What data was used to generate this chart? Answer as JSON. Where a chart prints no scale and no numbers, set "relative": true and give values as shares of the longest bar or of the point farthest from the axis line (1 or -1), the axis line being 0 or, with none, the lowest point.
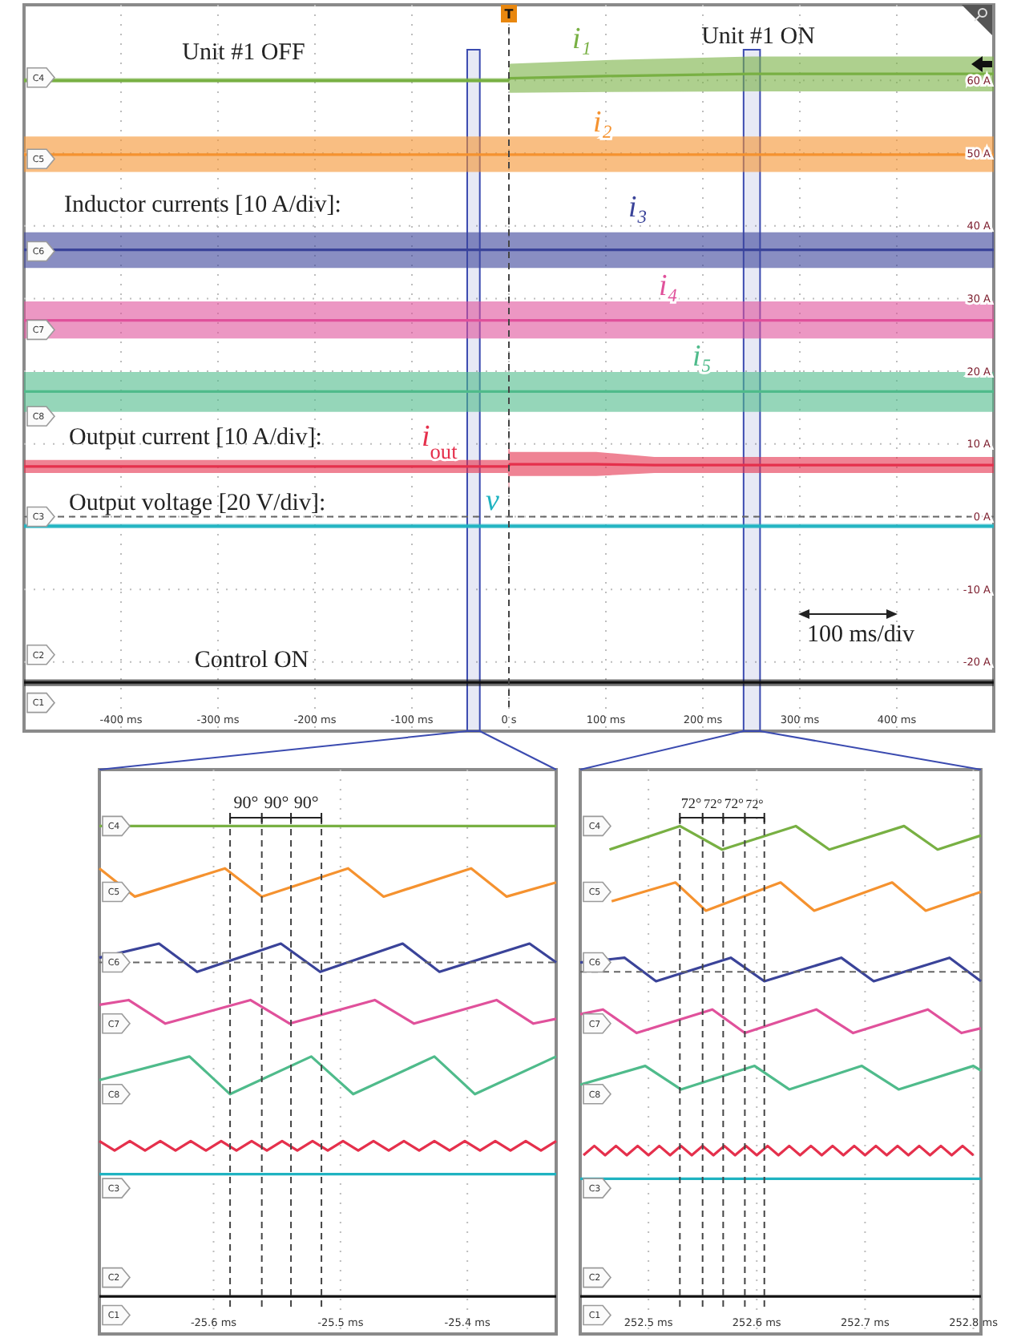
{
  "chart_data": [
    {
      "type": "line",
      "xlim": [
        -500,
        500
      ],
      "ylim": [
        -29.5,
        70.4
      ],
      "xticks": [
        {
          "value": -400,
          "label": "-400 ms"
        },
        {
          "value": -300,
          "label": "-300 ms"
        },
        {
          "value": -200,
          "label": "-200 ms"
        },
        {
          "value": -100,
          "label": "-100 ms"
        },
        {
          "value": 0,
          "label": "0 s"
        },
        {
          "value": 100,
          "label": "100 ms"
        },
        {
          "value": 200,
          "label": "200 ms"
        },
        {
          "value": 300,
          "label": "300 ms"
        },
        {
          "value": 400,
          "label": "400 ms"
        }
      ],
      "yticks": [
        {
          "value": 60,
          "label": "60 A"
        },
        {
          "value": 50,
          "label": "50 A"
        },
        {
          "value": 40,
          "label": "40 A"
        },
        {
          "value": 30,
          "label": "30 A"
        },
        {
          "value": 20,
          "label": "20 A"
        },
        {
          "value": 10,
          "label": "10 A"
        },
        {
          "value": 0,
          "label": "0 A"
        },
        {
          "value": -10,
          "label": "-10 A"
        },
        {
          "value": -20,
          "label": "-20 A"
        }
      ],
      "grid": true,
      "series": [
        {
          "name": "i₁",
          "color": "#78b043",
          "x": [
            -500,
            -1,
            1,
            100,
            250,
            500
          ],
          "values": [
            60,
            60,
            60.3,
            60.6,
            60.9,
            60.9
          ],
          "lower": [
            59.7,
            59.7,
            58.3,
            58.4,
            58.5,
            58.5
          ],
          "upper": [
            60.3,
            60.3,
            62.3,
            62.8,
            63.3,
            63.3
          ]
        },
        {
          "name": "i₂",
          "color": "#f5922f",
          "x": [
            -500,
            500
          ],
          "values": [
            49.8,
            49.8
          ],
          "lower": [
            47.4,
            47.4
          ],
          "upper": [
            52.3,
            52.3
          ]
        },
        {
          "name": "i₃",
          "color": "#3a4399",
          "x": [
            -500,
            500
          ],
          "values": [
            36.7,
            36.7
          ],
          "lower": [
            34.2,
            34.2
          ],
          "upper": [
            39.1,
            39.1
          ]
        },
        {
          "name": "i₄",
          "color": "#e0519b",
          "x": [
            -500,
            500
          ],
          "values": [
            27.0,
            27.0
          ],
          "lower": [
            24.5,
            24.5
          ],
          "upper": [
            29.6,
            29.6
          ]
        },
        {
          "name": "i₅",
          "color": "#4fbb8b",
          "x": [
            -500,
            500
          ],
          "values": [
            17.2,
            17.2
          ],
          "lower": [
            14.4,
            14.4
          ],
          "upper": [
            19.9,
            19.9
          ]
        },
        {
          "name": "i$_{out}$",
          "color": "#e5304c",
          "x": [
            -500,
            -1,
            0,
            1,
            90,
            150,
            500
          ],
          "values": [
            6.9,
            6.9,
            7.0,
            7.2,
            7.2,
            7.1,
            7.1
          ],
          "lower": [
            6.0,
            6.0,
            3.4,
            5.6,
            5.6,
            6.0,
            6.0
          ],
          "upper": [
            7.8,
            7.8,
            10.6,
            8.9,
            8.9,
            8.2,
            8.2
          ]
        },
        {
          "name": "v",
          "color": "#1fb3c1",
          "x": [
            -500,
            500
          ],
          "values": [
            -1.3,
            -1.3
          ],
          "lower": [
            -1.6,
            -1.6
          ],
          "upper": [
            -1.0,
            -1.0
          ]
        },
        {
          "color": "#111111",
          "x": [
            -500,
            500
          ],
          "values": [
            -22.8,
            -22.8
          ],
          "lower": [
            -23.3,
            -23.3
          ],
          "upper": [
            -22.4,
            -22.4
          ]
        }
      ],
      "ref_lines": [
        {
          "axis": "x",
          "value": 0,
          "line_style": "dashed"
        },
        {
          "axis": "y",
          "value": 0,
          "line_style": "dashed"
        }
      ],
      "bands": [
        {
          "axis": "x",
          "from": -43,
          "to": -30,
          "color": "#3b4bb0"
        },
        {
          "axis": "x",
          "from": 242,
          "to": 259,
          "color": "#3b4bb0"
        }
      ],
      "annotations": [
        "Unit #1 OFF",
        "Unit #1 ON",
        "Inductor currents [10 A/div]:",
        "Output current [10 A/div]:",
        "Output voltage [20 V/div]:",
        "Control ON",
        "100 ms/div",
        "T",
        {
          "text": "C4",
          "y": 60.4
        },
        {
          "text": "C5",
          "y": 49.2
        },
        {
          "text": "C6",
          "y": 36.5
        },
        {
          "text": "C7",
          "y": 25.7
        },
        {
          "text": "C8",
          "y": 13.8
        },
        {
          "text": "C3",
          "y": 0
        },
        {
          "text": "C2",
          "y": -19
        },
        {
          "text": "C1",
          "y": -25.6
        }
      ]
    },
    {
      "type": "line",
      "xlim": [
        -25.69,
        -25.33
      ],
      "relative": true,
      "tick_labels": "x",
      "xticks": [
        {
          "value": -25.6,
          "label": "-25.6 ms"
        },
        {
          "value": -25.5,
          "label": "-25.5 ms"
        },
        {
          "value": -25.4,
          "label": "-25.4 ms"
        }
      ],
      "grid": "x",
      "series": [
        {
          "color": "#78b043",
          "x": [
            -25.69,
            -25.33
          ],
          "values": [
            1,
            1
          ]
        },
        {
          "color": "#f5922f",
          "x": [
            -25.69,
            -25.662,
            -25.591,
            -25.562,
            -25.494,
            -25.466,
            -25.397,
            -25.369,
            -25.33
          ],
          "values": [
            0.91,
            0.85,
            0.91,
            0.85,
            0.91,
            0.85,
            0.91,
            0.85,
            0.88
          ]
        },
        {
          "color": "#3a4399",
          "x": [
            -25.69,
            -25.643,
            -25.613,
            -25.547,
            -25.516,
            -25.451,
            -25.422,
            -25.351,
            -25.33
          ],
          "values": [
            0.72,
            0.75,
            0.69,
            0.75,
            0.69,
            0.75,
            0.69,
            0.75,
            0.71
          ]
        },
        {
          "color": "#e0519b",
          "x": [
            -25.69,
            -25.667,
            -25.638,
            -25.571,
            -25.54,
            -25.473,
            -25.442,
            -25.377,
            -25.348,
            -25.33
          ],
          "values": [
            0.62,
            0.63,
            0.58,
            0.63,
            0.58,
            0.63,
            0.58,
            0.63,
            0.58,
            0.59
          ]
        },
        {
          "color": "#4fbb8b",
          "x": [
            -25.69,
            -25.619,
            -25.587,
            -25.523,
            -25.49,
            -25.426,
            -25.394,
            -25.33
          ],
          "values": [
            0.46,
            0.51,
            0.43,
            0.51,
            0.43,
            0.51,
            0.43,
            0.51
          ]
        },
        {
          "color": "#e5304c",
          "x": [
            -25.69,
            -25.678,
            -25.666,
            -25.654,
            -25.642,
            -25.63,
            -25.618,
            -25.606,
            -25.594,
            -25.582,
            -25.57,
            -25.558,
            -25.546,
            -25.534,
            -25.522,
            -25.51,
            -25.498,
            -25.486,
            -25.474,
            -25.462,
            -25.45,
            -25.438,
            -25.426,
            -25.414,
            -25.402,
            -25.39,
            -25.378,
            -25.366,
            -25.354,
            -25.342,
            -25.33
          ],
          "values": [
            0.33,
            0.31,
            0.33,
            0.31,
            0.33,
            0.31,
            0.33,
            0.31,
            0.33,
            0.31,
            0.33,
            0.31,
            0.33,
            0.31,
            0.33,
            0.31,
            0.33,
            0.31,
            0.33,
            0.31,
            0.33,
            0.31,
            0.33,
            0.31,
            0.33,
            0.31,
            0.33,
            0.31,
            0.33,
            0.31,
            0.33
          ]
        },
        {
          "color": "#1fb3c1",
          "x": [
            -25.69,
            -25.33
          ],
          "values": [
            0.26,
            0.26
          ]
        },
        {
          "color": "#111111",
          "x": [
            -25.69,
            -25.33
          ],
          "values": [
            0,
            0
          ]
        }
      ],
      "ref_lines": [
        {
          "axis": "x",
          "value": -25.587,
          "line_style": "dashed"
        },
        {
          "axis": "x",
          "value": -25.562,
          "line_style": "dashed"
        },
        {
          "axis": "x",
          "value": -25.539,
          "line_style": "dashed"
        },
        {
          "axis": "x",
          "value": -25.515,
          "line_style": "dashed"
        },
        {
          "axis": "y",
          "value": 0.71,
          "line_style": "dashed"
        }
      ],
      "annotations": [
        "90°",
        "90°",
        "90°",
        "C4",
        "C5",
        "C6",
        "C7",
        "C8",
        "C3",
        "C2",
        "C1"
      ]
    },
    {
      "type": "line",
      "xlim": [
        252.437,
        252.807
      ],
      "relative": true,
      "tick_labels": "x",
      "xticks": [
        {
          "value": 252.5,
          "label": "252.5 ms"
        },
        {
          "value": 252.6,
          "label": "252.6 ms"
        },
        {
          "value": 252.7,
          "label": "252.7 ms"
        },
        {
          "value": 252.8,
          "label": "252.8 ms"
        }
      ],
      "grid": "x",
      "series": [
        {
          "color": "#78b043",
          "x": [
            252.464,
            252.529,
            252.568,
            252.636,
            252.667,
            252.736,
            252.767,
            252.807
          ],
          "values": [
            0.95,
            1,
            0.95,
            1,
            0.95,
            1,
            0.95,
            0.98
          ]
        },
        {
          "color": "#f5922f",
          "x": [
            252.466,
            252.525,
            252.553,
            252.622,
            252.653,
            252.725,
            252.756,
            252.807
          ],
          "values": [
            0.84,
            0.88,
            0.82,
            0.88,
            0.82,
            0.88,
            0.82,
            0.86
          ]
        },
        {
          "color": "#3a4399",
          "x": [
            252.437,
            252.478,
            252.507,
            252.576,
            252.607,
            252.678,
            252.708,
            252.778,
            252.807
          ],
          "values": [
            0.71,
            0.72,
            0.67,
            0.72,
            0.67,
            0.72,
            0.67,
            0.72,
            0.67
          ]
        },
        {
          "color": "#e0519b",
          "x": [
            252.437,
            252.458,
            252.489,
            252.559,
            252.589,
            252.655,
            252.689,
            252.758,
            252.789,
            252.807
          ],
          "values": [
            0.6,
            0.61,
            0.56,
            0.61,
            0.56,
            0.61,
            0.56,
            0.61,
            0.56,
            0.57
          ]
        },
        {
          "color": "#4fbb8b",
          "x": [
            252.437,
            252.497,
            252.53,
            252.598,
            252.63,
            252.697,
            252.731,
            252.8,
            252.807
          ],
          "values": [
            0.45,
            0.49,
            0.44,
            0.49,
            0.44,
            0.49,
            0.44,
            0.49,
            0.48
          ]
        },
        {
          "color": "#e5304c",
          "x": [
            252.44,
            252.45,
            252.46,
            252.47,
            252.48,
            252.49,
            252.5,
            252.51,
            252.52,
            252.53,
            252.54,
            252.55,
            252.56,
            252.57,
            252.58,
            252.59,
            252.6,
            252.61,
            252.62,
            252.63,
            252.64,
            252.65,
            252.66,
            252.67,
            252.68,
            252.69,
            252.7,
            252.71,
            252.72,
            252.73,
            252.74,
            252.75,
            252.76,
            252.77,
            252.78,
            252.79,
            252.8
          ],
          "values": [
            0.3,
            0.32,
            0.3,
            0.32,
            0.3,
            0.32,
            0.3,
            0.32,
            0.3,
            0.32,
            0.3,
            0.32,
            0.3,
            0.32,
            0.3,
            0.32,
            0.3,
            0.32,
            0.3,
            0.32,
            0.3,
            0.32,
            0.3,
            0.32,
            0.3,
            0.32,
            0.3,
            0.32,
            0.3,
            0.32,
            0.3,
            0.32,
            0.3,
            0.32,
            0.3,
            0.32,
            0.3
          ]
        },
        {
          "color": "#1fb3c1",
          "x": [
            252.437,
            252.807
          ],
          "values": [
            0.25,
            0.25
          ]
        },
        {
          "color": "#111111",
          "x": [
            252.437,
            252.807
          ],
          "values": [
            0,
            0
          ]
        }
      ],
      "ref_lines": [
        {
          "axis": "x",
          "value": 252.529,
          "line_style": "dashed"
        },
        {
          "axis": "x",
          "value": 252.55,
          "line_style": "dashed"
        },
        {
          "axis": "x",
          "value": 252.569,
          "line_style": "dashed"
        },
        {
          "axis": "x",
          "value": 252.589,
          "line_style": "dashed"
        },
        {
          "axis": "x",
          "value": 252.607,
          "line_style": "dashed"
        },
        {
          "axis": "y",
          "value": 0.69,
          "line_style": "dashed"
        }
      ],
      "annotations": [
        "72°",
        "72°",
        "72°",
        "72°",
        "C4",
        "C5",
        "C6",
        "C7",
        "C8",
        "C3",
        "C2",
        "C1"
      ]
    }
  ]
}
